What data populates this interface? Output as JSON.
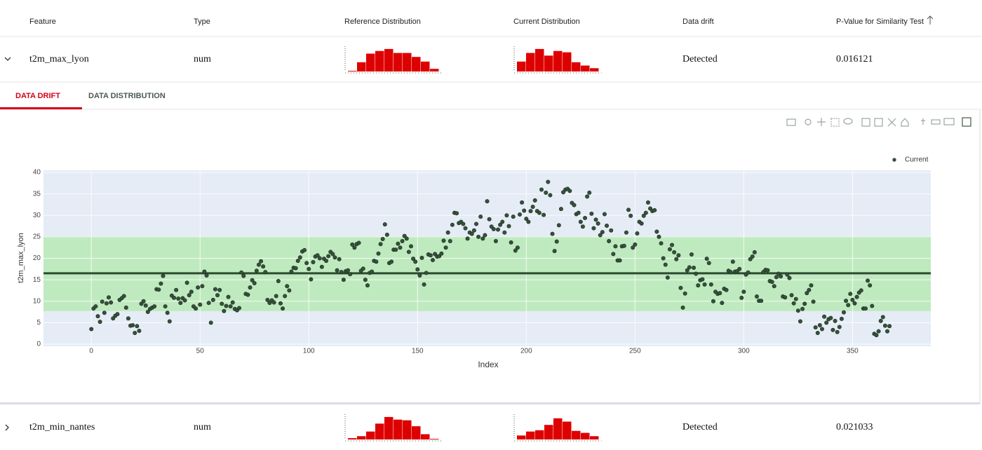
{
  "table": {
    "columns": [
      "Feature",
      "Type",
      "Reference Distribution",
      "Current Distribution",
      "Data drift",
      "P-Value for Similarity Test"
    ],
    "rows": [
      {
        "feature": "t2m_max_lyon",
        "type": "num",
        "reference_distribution": {
          "values": [
            1,
            14,
            27,
            31,
            34,
            28,
            28,
            22,
            15,
            4
          ],
          "ylim": [
            0,
            36
          ],
          "color": "#dd0000"
        },
        "current_distribution": {
          "values": [
            15,
            28,
            34,
            24,
            31,
            29,
            14,
            9,
            5
          ],
          "ylim": [
            0,
            36
          ],
          "color": "#dd0000"
        },
        "data_drift": "Detected",
        "p_value": 0.016121
      },
      {
        "feature": "t2m_min_nantes",
        "type": "num",
        "reference_distribution": {
          "values": [
            2,
            5,
            12,
            24,
            34,
            30,
            29,
            20,
            8,
            1
          ],
          "ylim": [
            0,
            36
          ],
          "color": "#dd0000"
        },
        "current_distribution": {
          "values": [
            6,
            12,
            14,
            22,
            32,
            27,
            13,
            10,
            5
          ],
          "ylim": [
            0,
            36
          ],
          "color": "#dd0000"
        },
        "data_drift": "Detected",
        "p_value": 0.021033
      }
    ]
  },
  "tabs": [
    "DATA DRIFT",
    "DATA DISTRIBUTION"
  ],
  "chart_data": {
    "type": "scatter",
    "x_label": "Index",
    "y_label": "t2m_max_lyon",
    "xlim": [
      -22,
      386
    ],
    "ylim": [
      -0.5,
      40.5
    ],
    "xticks": [
      0,
      50,
      100,
      150,
      200,
      250,
      300,
      350
    ],
    "yticks": [
      0,
      5,
      10,
      15,
      20,
      25,
      30,
      35,
      40
    ],
    "grid": true,
    "band": [
      7.7,
      25.1
    ],
    "band_color": "#bfeabf",
    "reference_mean": 16.5,
    "mean_color": "#2e4a32",
    "legend": "top-right",
    "series": [
      {
        "name": "Current",
        "color": "#35513a",
        "values": [
          3.5,
          8.3,
          8.8,
          6.5,
          5.2,
          9.9,
          7.3,
          9.5,
          10.9,
          9.7,
          6.0,
          6.6,
          7.0,
          10.3,
          10.7,
          11.2,
          8.5,
          6.0,
          4.3,
          4.4,
          2.6,
          4.2,
          3.1,
          9.4,
          10.0,
          9.0,
          7.5,
          8.2,
          8.5,
          8.8,
          12.8,
          12.7,
          14.1,
          15.9,
          8.8,
          7.3,
          5.3,
          11.3,
          10.8,
          12.6,
          10.6,
          9.6,
          10.7,
          10.2,
          14.3,
          11.4,
          12.2,
          8.8,
          8.3,
          13.2,
          9.2,
          13.5,
          16.9,
          16.0,
          9.6,
          5.0,
          10.3,
          12.8,
          11.4,
          12.6,
          9.4,
          7.7,
          8.9,
          11.0,
          8.8,
          9.7,
          8.2,
          7.9,
          8.4,
          16.7,
          15.9,
          11.7,
          11.5,
          13.2,
          14.9,
          14.2,
          17.1,
          18.5,
          19.3,
          18.1,
          16.8,
          10.3,
          9.6,
          10.2,
          9.7,
          11.2,
          14.7,
          9.5,
          8.3,
          11.2,
          13.5,
          12.5,
          16.9,
          17.8,
          17.7,
          19.4,
          20.2,
          21.6,
          21.9,
          18.9,
          17.5,
          15.1,
          19.1,
          20.4,
          20.7,
          20.0,
          18.0,
          19.9,
          19.4,
          20.5,
          21.5,
          21.0,
          20.2,
          17.2,
          19.8,
          16.8,
          15.0,
          17.0,
          17.2,
          16.3,
          23.2,
          22.5,
          23.3,
          23.6,
          17.1,
          17.6,
          15.0,
          13.7,
          16.6,
          16.9,
          19.4,
          19.2,
          21.1,
          23.3,
          24.5,
          27.9,
          25.5,
          18.9,
          19.2,
          22.0,
          22.0,
          23.4,
          22.5,
          24.0,
          25.2,
          24.6,
          21.5,
          22.8,
          19.9,
          19.2,
          17.4,
          16.0,
          20.1,
          13.9,
          16.6,
          20.9,
          20.7,
          19.6,
          21.0,
          20.4,
          20.5,
          21.1,
          24.1,
          22.5,
          26.0,
          24.0,
          27.8,
          30.6,
          30.5,
          28.2,
          28.5,
          28.0,
          27.0,
          24.6,
          26.0,
          25.7,
          26.5,
          28.0,
          25.0,
          29.7,
          24.6,
          25.4,
          33.3,
          29.1,
          27.4,
          26.8,
          24.0,
          26.7,
          27.8,
          28.5,
          26.0,
          30.0,
          27.5,
          23.7,
          29.7,
          21.8,
          22.5,
          30.2,
          33.0,
          31.1,
          29.2,
          28.5,
          31.0,
          32.0,
          33.5,
          31.0,
          30.6,
          36.0,
          30.1,
          35.3,
          37.8,
          34.7,
          25.7,
          21.7,
          23.9,
          27.7,
          31.5,
          35.4,
          36.0,
          36.2,
          35.7,
          32.9,
          32.4,
          30.3,
          30.6,
          28.5,
          27.4,
          29.4,
          34.4,
          35.3,
          30.4,
          27.0,
          29.0,
          28.1,
          25.4,
          26.1,
          30.3,
          27.6,
          24.0,
          26.5,
          21.0,
          22.8,
          19.5,
          19.5,
          22.8,
          22.9,
          26.0,
          31.3,
          29.9,
          22.5,
          23.2,
          25.8,
          28.5,
          28.1,
          29.9,
          30.6,
          33.0,
          31.6,
          31.0,
          31.2,
          26.2,
          25.0,
          23.5,
          20.0,
          18.5,
          15.5,
          22.1,
          23.1,
          21.4,
          19.8,
          20.7,
          13.1,
          8.5,
          11.8,
          17.2,
          17.9,
          20.9,
          17.8,
          16.4,
          13.7,
          14.9,
          15.1,
          13.9,
          19.9,
          18.9,
          13.9,
          10.0,
          12.2,
          11.7,
          11.9,
          9.6,
          12.9,
          12.6,
          17.1,
          16.8,
          19.2,
          16.9,
          17.0,
          17.5,
          10.8,
          12.2,
          16.2,
          16.7,
          19.8,
          20.4,
          21.4,
          11.1,
          10.1,
          10.1,
          16.8,
          17.3,
          17.2,
          14.7,
          14.5,
          13.5,
          15.6,
          16.4,
          15.8,
          11.1,
          10.9,
          16.2,
          15.4,
          11.4,
          9.5,
          10.5,
          7.8,
          5.3,
          8.2,
          9.4,
          11.9,
          12.6,
          13.7,
          9.9,
          3.9,
          2.6,
          4.4,
          3.5,
          6.4,
          5.0,
          5.8,
          6.1,
          3.3,
          5.4,
          2.8,
          4.0,
          5.9,
          7.4,
          10.1,
          9.1,
          11.7,
          10.3,
          9.5,
          11.0,
          12.0,
          12.5,
          8.3,
          8.3,
          14.8,
          13.7,
          8.9,
          2.4,
          2.1,
          3.0,
          5.4,
          6.3,
          4.3,
          3.0,
          4.2
        ]
      }
    ]
  }
}
